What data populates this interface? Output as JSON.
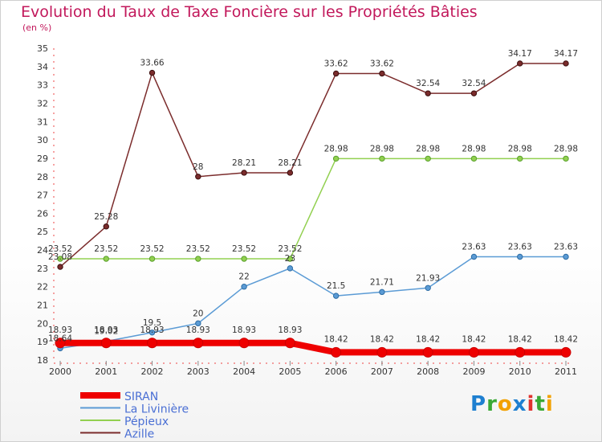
{
  "title": "Evolution du Taux de Taxe Foncière sur les Propriétés Bâties",
  "unit_label": "(en %)",
  "logo": {
    "text": "Proxiti",
    "letter_colors": [
      "#1e7fd0",
      "#3aa935",
      "#f2a100",
      "#1e7fd0",
      "#e0332f",
      "#3aa935",
      "#f2a100"
    ]
  },
  "chart_data": {
    "type": "line",
    "x": [
      "2000",
      "2001",
      "2002",
      "2003",
      "2004",
      "2005",
      "2006",
      "2007",
      "2008",
      "2009",
      "2010",
      "2011"
    ],
    "ylim": [
      18,
      35
    ],
    "yticks": [
      18,
      19,
      20,
      21,
      22,
      23,
      24,
      25,
      26,
      27,
      28,
      29,
      30,
      31,
      32,
      33,
      34,
      35
    ],
    "series": [
      {
        "name": "SIRAN",
        "color": "#ee0000",
        "values": [
          18.93,
          18.93,
          18.93,
          18.93,
          18.93,
          18.93,
          18.42,
          18.42,
          18.42,
          18.42,
          18.42,
          18.42
        ],
        "labels": [
          "18.93",
          "18.93",
          "18.93",
          "18.93",
          "18.93",
          "18.93",
          "18.42",
          "18.42",
          "18.42",
          "18.42",
          "18.42",
          "18.42"
        ]
      },
      {
        "name": "La Livinière",
        "color": "#5b9bd5",
        "values": [
          18.64,
          19.02,
          19.5,
          20,
          22,
          23,
          21.5,
          21.71,
          21.93,
          23.63,
          23.63,
          23.63
        ],
        "labels": [
          "18.64",
          "19.02",
          "19.5",
          "20",
          "22",
          "23",
          "21.5",
          "21.71",
          "21.93",
          "23.63",
          "23.63",
          "23.63"
        ]
      },
      {
        "name": "Pépieux",
        "color": "#92d050",
        "values": [
          23.52,
          23.52,
          23.52,
          23.52,
          23.52,
          23.52,
          28.98,
          28.98,
          28.98,
          28.98,
          28.98,
          28.98
        ],
        "labels": [
          "23.52",
          "23.52",
          "23.52",
          "23.52",
          "23.52",
          "23.52",
          "28.98",
          "28.98",
          "28.98",
          "28.98",
          "28.98",
          "28.98"
        ]
      },
      {
        "name": "Azille",
        "color": "#7b2c2c",
        "values": [
          23.08,
          25.28,
          33.66,
          28,
          28.21,
          28.21,
          33.62,
          33.62,
          32.54,
          32.54,
          34.17,
          34.17
        ],
        "labels": [
          "23.08",
          "25.28",
          "33.66",
          "28",
          "28.21",
          "28.21",
          "33.62",
          "33.62",
          "32.54",
          "32.54",
          "34.17",
          "34.17"
        ]
      }
    ],
    "grid": false,
    "legend_position": "bottom-left"
  }
}
